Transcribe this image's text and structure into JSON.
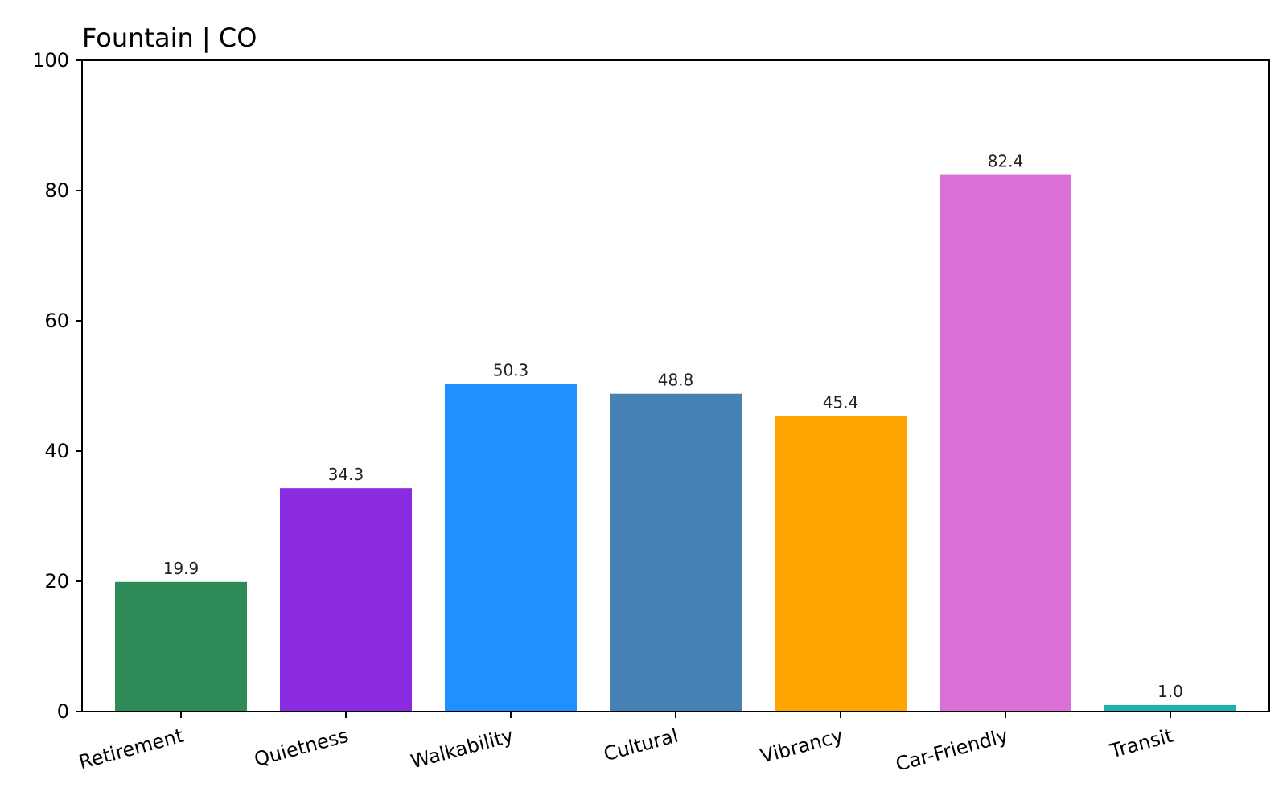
{
  "chart_data": {
    "type": "bar",
    "title": "Fountain | CO",
    "xlabel": "",
    "ylabel": "",
    "ylim": [
      0,
      100
    ],
    "yticks": [
      0,
      20,
      40,
      60,
      80,
      100
    ],
    "categories": [
      "Retirement",
      "Quietness",
      "Walkability",
      "Cultural",
      "Vibrancy",
      "Car-Friendly",
      "Transit"
    ],
    "values": [
      19.9,
      34.3,
      50.3,
      48.8,
      45.4,
      82.4,
      1.0
    ],
    "value_labels": [
      "19.9",
      "34.3",
      "50.3",
      "48.8",
      "45.4",
      "82.4",
      "1.0"
    ],
    "colors": [
      "#2e8b57",
      "#8a2be2",
      "#1e90ff",
      "#4682b4",
      "#ffa500",
      "#da70d6",
      "#20b2aa"
    ],
    "grid": false,
    "legend": "none"
  }
}
